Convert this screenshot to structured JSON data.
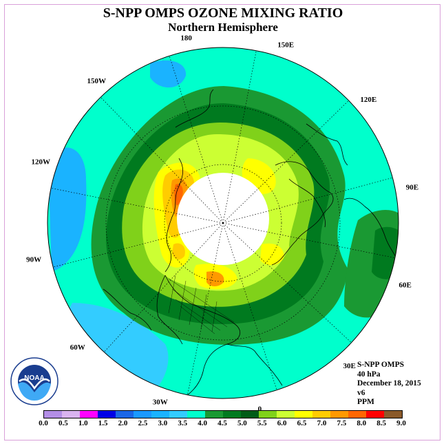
{
  "title": "S-NPP OMPS OZONE MIXING RATIO",
  "subtitle": "Northern Hemisphere",
  "info_lines": [
    "S-NPP OMPS",
    "40 hPa",
    "December 18, 2015",
    "v6",
    "PPM"
  ],
  "logo": {
    "text": "NOAA",
    "ring_text": "NATIONAL OCEANIC AND ATMOSPHERIC ADMINISTRATION · U.S. DEPARTMENT OF COMMERCE"
  },
  "longitude_labels": [
    {
      "text": "120E",
      "lon": 120
    },
    {
      "text": "90E",
      "lon": 90
    },
    {
      "text": "60E",
      "lon": 60
    },
    {
      "text": "150E",
      "lon": 150
    },
    {
      "text": "30E",
      "lon": 30
    },
    {
      "text": "180",
      "lon": 180
    },
    {
      "text": "0",
      "lon": 0
    },
    {
      "text": "150W",
      "lon": -150
    },
    {
      "text": "30W",
      "lon": -30
    },
    {
      "text": "120W",
      "lon": -120
    },
    {
      "text": "60W",
      "lon": -60
    },
    {
      "text": "90W",
      "lon": -90
    }
  ],
  "colorbar": {
    "ticks": [
      "0.0",
      "0.5",
      "1.0",
      "1.5",
      "2.0",
      "2.5",
      "3.0",
      "3.5",
      "4.0",
      "4.5",
      "5.0",
      "5.5",
      "6.0",
      "6.5",
      "7.0",
      "7.5",
      "8.0",
      "8.5",
      "9.0"
    ],
    "colors": [
      "#b38ee6",
      "#d9b3f0",
      "#ff00ff",
      "#0000e6",
      "#1a66e6",
      "#1a99ff",
      "#1ab3ff",
      "#33ccff",
      "#00ffcc",
      "#1a9933",
      "#007a1f",
      "#005c17",
      "#80d11a",
      "#ccff33",
      "#ffff00",
      "#ffcc00",
      "#ff9900",
      "#ff6600",
      "#ff0000",
      "#8a5a2a"
    ]
  },
  "colors": {
    "pole_hole": "#ffffff",
    "coast": "#000000"
  }
}
